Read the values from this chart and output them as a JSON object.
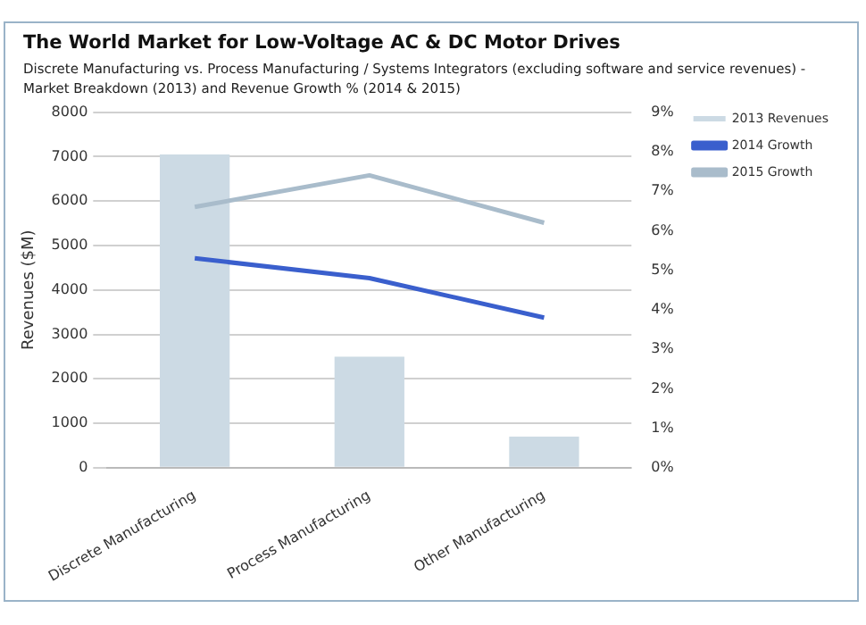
{
  "chart_data": {
    "type": "bar",
    "title": "The World Market for Low-Voltage AC & DC Motor Drives",
    "subtitle": "Discrete Manufacturing vs. Process Manufacturing / Systems Integrators (excluding software and service revenues) - Market Breakdown (2013) and Revenue Growth % (2014 & 2015)",
    "ylabel": "Revenues ($M)",
    "categories": [
      "Discrete Manufacturing",
      "Process Manufacturing",
      "Other Manufacturing"
    ],
    "series": [
      {
        "name": "2013 Revenues",
        "color": "#ccdae4",
        "values": [
          7050,
          2500,
          700
        ]
      },
      {
        "name": "2014 Growth",
        "type": "line",
        "axis": "y2",
        "color": "#3a5fcd",
        "values": [
          5.3,
          4.8,
          3.8
        ]
      },
      {
        "name": "2015 Growth",
        "type": "line",
        "axis": "y2",
        "color": "#a9bccb",
        "values": [
          6.6,
          7.4,
          6.2
        ]
      }
    ],
    "ylim": [
      0,
      8000
    ],
    "yticks": [
      0,
      1000,
      2000,
      3000,
      4000,
      5000,
      6000,
      7000,
      8000
    ],
    "y2lim": [
      0,
      9
    ],
    "y2ticks": [
      {
        "value": 0,
        "label": "0%"
      },
      {
        "value": 1,
        "label": "1%"
      },
      {
        "value": 2,
        "label": "2%"
      },
      {
        "value": 3,
        "label": "3%"
      },
      {
        "value": 4,
        "label": "4%"
      },
      {
        "value": 5,
        "label": "5%"
      },
      {
        "value": 6,
        "label": "6%"
      },
      {
        "value": 7,
        "label": "7%"
      },
      {
        "value": 8,
        "label": "8%"
      },
      {
        "value": 9,
        "label": "9%"
      }
    ],
    "grid": "y",
    "legend": "right",
    "marker": "none"
  }
}
